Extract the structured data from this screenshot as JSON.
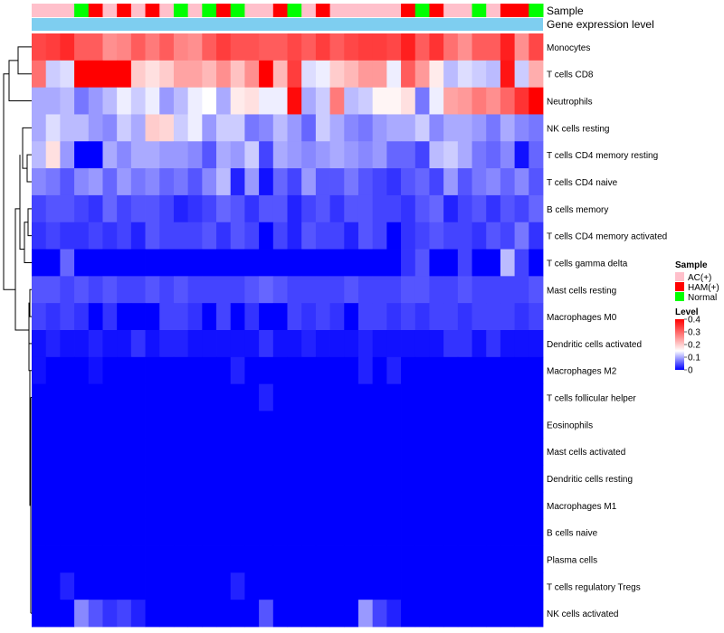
{
  "chart_data": {
    "type": "heatmap",
    "annotation_titles": [
      "Sample",
      "Gene expression level"
    ],
    "sample_groups": [
      "AC(+)",
      "HAM(+)",
      "Normal"
    ],
    "sample_colors": {
      "AC(+)": "#FFC0CB",
      "HAM(+)": "#FF0000",
      "Normal": "#00FF00"
    },
    "samples": [
      "AC(+)",
      "AC(+)",
      "AC(+)",
      "Normal",
      "HAM(+)",
      "AC(+)",
      "HAM(+)",
      "AC(+)",
      "HAM(+)",
      "AC(+)",
      "Normal",
      "AC(+)",
      "Normal",
      "HAM(+)",
      "Normal",
      "AC(+)",
      "AC(+)",
      "HAM(+)",
      "Normal",
      "AC(+)",
      "HAM(+)",
      "AC(+)",
      "AC(+)",
      "AC(+)",
      "AC(+)",
      "AC(+)",
      "HAM(+)",
      "Normal",
      "HAM(+)",
      "AC(+)",
      "AC(+)",
      "Normal",
      "AC(+)",
      "HAM(+)",
      "HAM(+)",
      "Normal"
    ],
    "gene_level_color": "#7ECEF0",
    "legend": {
      "sample_title": "Sample",
      "level_title": "Level",
      "level_ticks": [
        "0.4",
        "0.3",
        "0.2",
        "0.1",
        "0"
      ],
      "scale": {
        "min": 0,
        "mid": 0.15,
        "max": 0.4,
        "low": "#0000FF",
        "mid_color": "#FFFFFF",
        "high": "#FF0000"
      }
    },
    "rows": [
      {
        "name": "Monocytes",
        "values": [
          0.33,
          0.34,
          0.36,
          0.31,
          0.31,
          0.26,
          0.27,
          0.31,
          0.28,
          0.31,
          0.27,
          0.26,
          0.31,
          0.34,
          0.32,
          0.32,
          0.31,
          0.31,
          0.33,
          0.31,
          0.34,
          0.31,
          0.33,
          0.34,
          0.34,
          0.33,
          0.37,
          0.31,
          0.35,
          0.29,
          0.26,
          0.31,
          0.31,
          0.37,
          0.26,
          0.33
        ]
      },
      {
        "name": "T cells CD8",
        "values": [
          0.29,
          0.12,
          0.13,
          0.4,
          0.4,
          0.4,
          0.4,
          0.2,
          0.18,
          0.2,
          0.24,
          0.24,
          0.22,
          0.26,
          0.21,
          0.26,
          0.4,
          0.22,
          0.34,
          0.13,
          0.14,
          0.2,
          0.22,
          0.25,
          0.25,
          0.14,
          0.31,
          0.25,
          0.17,
          0.11,
          0.13,
          0.12,
          0.11,
          0.38,
          0.12,
          0.23
        ]
      },
      {
        "name": "Neutrophils",
        "values": [
          0.1,
          0.1,
          0.11,
          0.07,
          0.09,
          0.11,
          0.14,
          0.12,
          0.14,
          0.09,
          0.11,
          0.14,
          0.15,
          0.1,
          0.17,
          0.18,
          0.14,
          0.14,
          0.39,
          0.1,
          0.12,
          0.28,
          0.11,
          0.12,
          0.16,
          0.16,
          0.18,
          0.07,
          0.14,
          0.24,
          0.25,
          0.28,
          0.26,
          0.3,
          0.35,
          0.4
        ]
      },
      {
        "name": "NK cells resting",
        "values": [
          0.1,
          0.13,
          0.11,
          0.11,
          0.09,
          0.08,
          0.12,
          0.1,
          0.2,
          0.19,
          0.12,
          0.14,
          0.09,
          0.12,
          0.12,
          0.07,
          0.08,
          0.11,
          0.09,
          0.06,
          0.12,
          0.1,
          0.08,
          0.07,
          0.09,
          0.1,
          0.1,
          0.12,
          0.08,
          0.1,
          0.1,
          0.09,
          0.07,
          0.1,
          0.08,
          0.07
        ]
      },
      {
        "name": "T cells CD4 memory resting",
        "values": [
          0.11,
          0.18,
          0.09,
          0.0,
          0.0,
          0.1,
          0.08,
          0.1,
          0.1,
          0.09,
          0.09,
          0.08,
          0.05,
          0.1,
          0.09,
          0.12,
          0.04,
          0.1,
          0.09,
          0.08,
          0.09,
          0.1,
          0.09,
          0.08,
          0.09,
          0.06,
          0.06,
          0.04,
          0.11,
          0.12,
          0.1,
          0.07,
          0.06,
          0.08,
          0.01,
          0.06
        ]
      },
      {
        "name": "T cells CD4 naive",
        "values": [
          0.08,
          0.07,
          0.05,
          0.08,
          0.09,
          0.06,
          0.09,
          0.07,
          0.08,
          0.06,
          0.07,
          0.05,
          0.08,
          0.11,
          0.02,
          0.09,
          0.01,
          0.06,
          0.04,
          0.09,
          0.05,
          0.05,
          0.07,
          0.05,
          0.04,
          0.03,
          0.05,
          0.06,
          0.04,
          0.09,
          0.05,
          0.07,
          0.08,
          0.06,
          0.08,
          0.05
        ]
      },
      {
        "name": "B cells memory",
        "values": [
          0.04,
          0.05,
          0.05,
          0.04,
          0.03,
          0.06,
          0.04,
          0.05,
          0.05,
          0.04,
          0.02,
          0.03,
          0.04,
          0.06,
          0.05,
          0.03,
          0.05,
          0.05,
          0.02,
          0.04,
          0.05,
          0.03,
          0.05,
          0.05,
          0.04,
          0.04,
          0.03,
          0.05,
          0.06,
          0.02,
          0.04,
          0.05,
          0.03,
          0.05,
          0.04,
          0.06
        ]
      },
      {
        "name": "T cells CD4 memory activated",
        "values": [
          0.03,
          0.04,
          0.03,
          0.03,
          0.04,
          0.03,
          0.04,
          0.02,
          0.05,
          0.04,
          0.04,
          0.04,
          0.05,
          0.03,
          0.05,
          0.04,
          0.0,
          0.04,
          0.02,
          0.05,
          0.04,
          0.04,
          0.02,
          0.05,
          0.04,
          0.0,
          0.03,
          0.04,
          0.05,
          0.04,
          0.04,
          0.03,
          0.05,
          0.04,
          0.07,
          0.03
        ]
      },
      {
        "name": "T cells gamma delta",
        "values": [
          0.0,
          0.0,
          0.06,
          0.0,
          0.0,
          0.0,
          0.0,
          0.0,
          0.0,
          0.0,
          0.0,
          0.0,
          0.0,
          0.0,
          0.0,
          0.0,
          0.0,
          0.0,
          0.0,
          0.0,
          0.0,
          0.0,
          0.0,
          0.0,
          0.0,
          0.0,
          0.03,
          0.05,
          0.0,
          0.0,
          0.04,
          0.0,
          0.0,
          0.11,
          0.04,
          0.0
        ]
      },
      {
        "name": "Mast cells resting",
        "values": [
          0.05,
          0.05,
          0.04,
          0.05,
          0.04,
          0.05,
          0.04,
          0.04,
          0.05,
          0.04,
          0.05,
          0.04,
          0.04,
          0.04,
          0.04,
          0.05,
          0.06,
          0.05,
          0.04,
          0.04,
          0.04,
          0.04,
          0.05,
          0.04,
          0.04,
          0.04,
          0.05,
          0.05,
          0.04,
          0.04,
          0.05,
          0.04,
          0.04,
          0.04,
          0.04,
          0.05
        ]
      },
      {
        "name": "Macrophages M0",
        "values": [
          0.04,
          0.03,
          0.04,
          0.03,
          0.0,
          0.03,
          0.0,
          0.0,
          0.0,
          0.04,
          0.04,
          0.03,
          0.0,
          0.04,
          0.0,
          0.03,
          0.0,
          0.0,
          0.04,
          0.03,
          0.04,
          0.03,
          0.0,
          0.04,
          0.04,
          0.03,
          0.04,
          0.03,
          0.04,
          0.04,
          0.03,
          0.04,
          0.04,
          0.04,
          0.03,
          0.04
        ]
      },
      {
        "name": "Dendritic cells activated",
        "values": [
          0.01,
          0.02,
          0.01,
          0.01,
          0.02,
          0.01,
          0.01,
          0.03,
          0.01,
          0.02,
          0.02,
          0.01,
          0.01,
          0.01,
          0.01,
          0.01,
          0.03,
          0.01,
          0.01,
          0.02,
          0.01,
          0.01,
          0.01,
          0.02,
          0.01,
          0.01,
          0.01,
          0.01,
          0.01,
          0.03,
          0.03,
          0.01,
          0.03,
          0.01,
          0.01,
          0.01
        ]
      },
      {
        "name": "Macrophages M2",
        "values": [
          0.01,
          0.0,
          0.0,
          0.0,
          0.01,
          0.0,
          0.0,
          0.0,
          0.0,
          0.0,
          0.0,
          0.0,
          0.0,
          0.0,
          0.02,
          0.0,
          0.0,
          0.0,
          0.0,
          0.0,
          0.0,
          0.0,
          0.0,
          0.02,
          0.0,
          0.02,
          0.0,
          0.0,
          0.0,
          0.0,
          0.0,
          0.0,
          0.0,
          0.0,
          0.0,
          0.0
        ]
      },
      {
        "name": "T cells follicular helper",
        "values": [
          0.0,
          0.0,
          0.0,
          0.0,
          0.0,
          0.0,
          0.0,
          0.0,
          0.0,
          0.0,
          0.0,
          0.0,
          0.0,
          0.0,
          0.0,
          0.0,
          0.02,
          0.0,
          0.0,
          0.0,
          0.0,
          0.0,
          0.0,
          0.0,
          0.0,
          0.0,
          0.0,
          0.0,
          0.0,
          0.0,
          0.0,
          0.0,
          0.0,
          0.0,
          0.0,
          0.0
        ]
      },
      {
        "name": "Eosinophils",
        "values": [
          0.0,
          0.0,
          0.0,
          0.0,
          0.0,
          0.0,
          0.0,
          0.0,
          0.0,
          0.0,
          0.0,
          0.0,
          0.0,
          0.0,
          0.0,
          0.0,
          0.0,
          0.0,
          0.0,
          0.0,
          0.0,
          0.0,
          0.0,
          0.0,
          0.0,
          0.0,
          0.0,
          0.0,
          0.0,
          0.0,
          0.0,
          0.0,
          0.0,
          0.0,
          0.0,
          0.0
        ]
      },
      {
        "name": "Mast cells activated",
        "values": [
          0.0,
          0.0,
          0.0,
          0.0,
          0.0,
          0.0,
          0.0,
          0.0,
          0.0,
          0.0,
          0.0,
          0.0,
          0.0,
          0.0,
          0.0,
          0.0,
          0.0,
          0.0,
          0.0,
          0.0,
          0.0,
          0.0,
          0.0,
          0.0,
          0.0,
          0.0,
          0.0,
          0.0,
          0.0,
          0.0,
          0.0,
          0.0,
          0.0,
          0.0,
          0.0,
          0.0
        ]
      },
      {
        "name": "Dendritic cells resting",
        "values": [
          0.0,
          0.0,
          0.0,
          0.0,
          0.0,
          0.0,
          0.0,
          0.0,
          0.0,
          0.0,
          0.0,
          0.0,
          0.0,
          0.0,
          0.0,
          0.0,
          0.0,
          0.0,
          0.0,
          0.0,
          0.0,
          0.0,
          0.0,
          0.0,
          0.0,
          0.0,
          0.0,
          0.0,
          0.0,
          0.0,
          0.0,
          0.0,
          0.0,
          0.0,
          0.0,
          0.0
        ]
      },
      {
        "name": "Macrophages M1",
        "values": [
          0.0,
          0.0,
          0.0,
          0.0,
          0.0,
          0.0,
          0.0,
          0.0,
          0.0,
          0.0,
          0.0,
          0.0,
          0.0,
          0.0,
          0.0,
          0.0,
          0.0,
          0.0,
          0.0,
          0.0,
          0.0,
          0.0,
          0.0,
          0.0,
          0.0,
          0.0,
          0.0,
          0.0,
          0.0,
          0.0,
          0.0,
          0.0,
          0.0,
          0.0,
          0.0,
          0.0
        ]
      },
      {
        "name": "B cells naive",
        "values": [
          0.0,
          0.0,
          0.0,
          0.0,
          0.0,
          0.0,
          0.0,
          0.0,
          0.0,
          0.0,
          0.0,
          0.0,
          0.0,
          0.0,
          0.0,
          0.0,
          0.0,
          0.0,
          0.0,
          0.0,
          0.0,
          0.0,
          0.0,
          0.0,
          0.0,
          0.0,
          0.0,
          0.0,
          0.0,
          0.0,
          0.0,
          0.0,
          0.0,
          0.0,
          0.0,
          0.0
        ]
      },
      {
        "name": "Plasma cells",
        "values": [
          0.0,
          0.0,
          0.0,
          0.0,
          0.0,
          0.0,
          0.0,
          0.0,
          0.0,
          0.0,
          0.0,
          0.0,
          0.0,
          0.0,
          0.0,
          0.0,
          0.0,
          0.0,
          0.0,
          0.0,
          0.0,
          0.0,
          0.0,
          0.0,
          0.0,
          0.0,
          0.0,
          0.0,
          0.0,
          0.0,
          0.0,
          0.0,
          0.0,
          0.0,
          0.0,
          0.0
        ]
      },
      {
        "name": "T cells regulatory  Tregs",
        "values": [
          0.0,
          0.0,
          0.02,
          0.0,
          0.0,
          0.0,
          0.0,
          0.0,
          0.0,
          0.0,
          0.0,
          0.0,
          0.0,
          0.0,
          0.02,
          0.0,
          0.0,
          0.0,
          0.0,
          0.0,
          0.0,
          0.0,
          0.0,
          0.0,
          0.0,
          0.0,
          0.0,
          0.0,
          0.0,
          0.0,
          0.0,
          0.0,
          0.0,
          0.0,
          0.0,
          0.0
        ]
      },
      {
        "name": "NK cells activated",
        "values": [
          0.0,
          0.0,
          0.0,
          0.08,
          0.05,
          0.03,
          0.04,
          0.02,
          0.0,
          0.0,
          0.0,
          0.0,
          0.0,
          0.0,
          0.0,
          0.0,
          0.05,
          0.0,
          0.0,
          0.0,
          0.0,
          0.0,
          0.0,
          0.09,
          0.04,
          0.02,
          0.0,
          0.0,
          0.0,
          0.0,
          0.0,
          0.0,
          0.0,
          0.0,
          0.0,
          0.0
        ]
      }
    ]
  }
}
